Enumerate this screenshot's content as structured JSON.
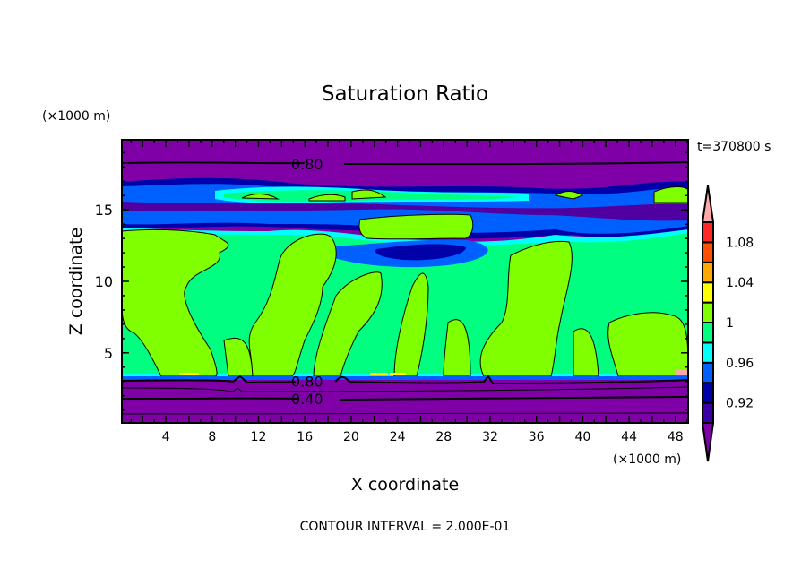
{
  "chart_data": {
    "type": "heatmap",
    "title": "Saturation Ratio",
    "xlabel": "X coordinate",
    "ylabel": "Z coordinate",
    "x_units": "(×1000 m)",
    "y_units": "(×1000 m)",
    "time_label": "t=370800 s",
    "footer": "CONTOUR INTERVAL = 2.000E-01",
    "xlim": [
      0.2,
      49.1
    ],
    "ylim": [
      0.1,
      19.9
    ],
    "x_ticks": [
      4,
      8,
      12,
      16,
      20,
      24,
      28,
      32,
      36,
      40,
      44,
      48
    ],
    "x_tick_labels": [
      "4",
      "8",
      "12",
      "16",
      "20",
      "24",
      "28",
      "32",
      "36",
      "40",
      "44",
      "48"
    ],
    "y_ticks": [
      5,
      10,
      15
    ],
    "y_tick_labels": [
      "5",
      "10",
      "15"
    ],
    "contour_labels": [
      {
        "text": "0.80",
        "x": 16.2,
        "z": 18.2
      },
      {
        "text": "0.80",
        "x": 16.2,
        "z": 3.0
      },
      {
        "text": "0.40",
        "x": 16.2,
        "z": 1.8
      }
    ],
    "colorbar": {
      "levels": [
        0.9,
        0.92,
        0.94,
        0.96,
        0.98,
        1.0,
        1.02,
        1.04,
        1.06,
        1.08,
        1.1
      ],
      "labels": [
        "0.92",
        "0.96",
        "1",
        "1.04",
        "1.08"
      ],
      "label_values": [
        0.92,
        0.96,
        1.0,
        1.04,
        1.08
      ],
      "colors": [
        "#3a00a8",
        "#0000a8",
        "#0060ff",
        "#00ffff",
        "#00ff80",
        "#80ff00",
        "#ffff00",
        "#ffa800",
        "#ff5000",
        "#ff2828"
      ],
      "under_color": "#8000a8",
      "over_color": "#ffa8a8"
    }
  }
}
